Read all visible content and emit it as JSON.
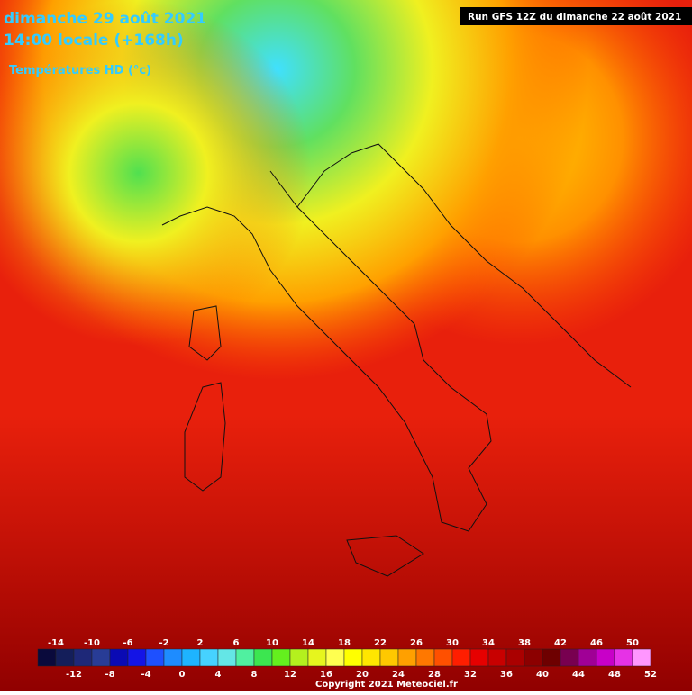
{
  "header": {
    "date": "dimanche 29 août 2021",
    "time": "14:00 locale (+168h)",
    "product": "Températures HD (°c)",
    "run": "Run GFS 12Z du dimanche 22 août 2021"
  },
  "legend": {
    "range": [
      -16,
      52
    ],
    "step": 2,
    "colors": [
      "#0a0a3c",
      "#141e5a",
      "#1e2878",
      "#283c96",
      "#0a0ab4",
      "#1414e6",
      "#1e50ff",
      "#1e8cff",
      "#1eb4ff",
      "#46d2ff",
      "#64e6e6",
      "#50f0a0",
      "#3ce650",
      "#64f01e",
      "#b4f01e",
      "#e6f51e",
      "#ffff50",
      "#ffff00",
      "#ffe600",
      "#ffc800",
      "#ffa000",
      "#ff7800",
      "#ff5000",
      "#ff1e00",
      "#e60000",
      "#c80000",
      "#aa0000",
      "#8c0000",
      "#6e0000",
      "#780050",
      "#a00096",
      "#c800c8",
      "#e632e6",
      "#ff96ff",
      "#ffc8ff",
      "#ffffff"
    ],
    "top_labels": [
      -14,
      -10,
      -6,
      -2,
      2,
      6,
      10,
      14,
      18,
      22,
      26,
      30,
      34,
      38,
      42,
      46,
      50
    ],
    "bottom_labels": [
      -12,
      -8,
      -4,
      0,
      4,
      8,
      12,
      16,
      20,
      24,
      28,
      32,
      36,
      40,
      44,
      48,
      52
    ]
  },
  "footer": {
    "copyright": "Copyright 2021 Meteociel.fr"
  }
}
